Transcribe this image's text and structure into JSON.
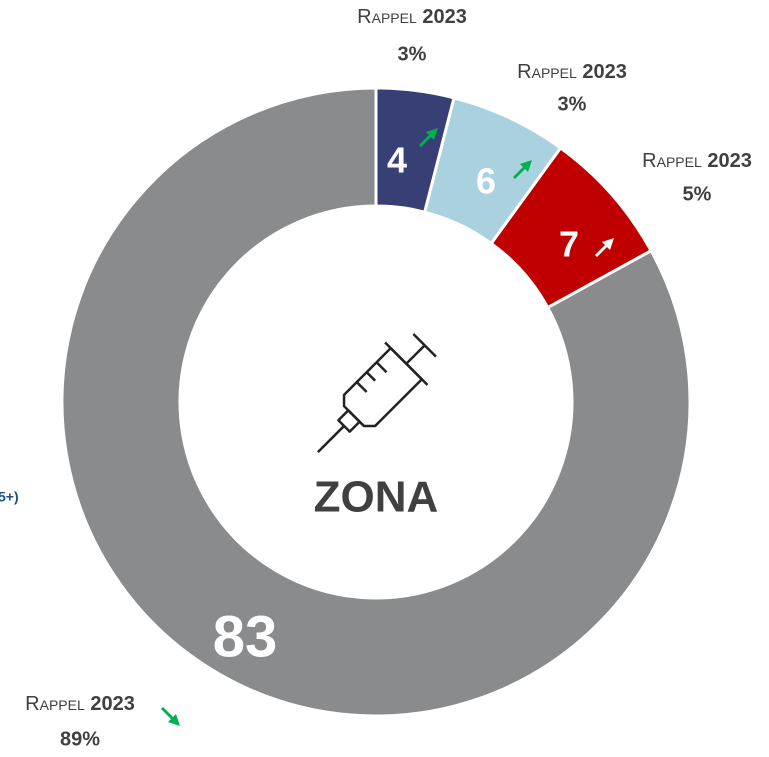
{
  "chart_data": {
    "type": "donut",
    "center_label": "ZONA",
    "side_note": "5+)",
    "values": [
      4,
      6,
      7,
      83
    ],
    "colors": [
      "#373f74",
      "#a9d1e0",
      "#c00000",
      "#898b8d"
    ],
    "label_colors": [
      "#ffffff",
      "#ffffff",
      "#ffffff",
      "#ffffff"
    ],
    "comparison": {
      "prefix": "Rappel",
      "year": "2023",
      "values": [
        3,
        3,
        5,
        89
      ],
      "value_labels": [
        "3%",
        "3%",
        "5%",
        "89%"
      ]
    },
    "trends": [
      "up",
      "up",
      "up",
      "down"
    ],
    "trend_colors": [
      "#00b050",
      "#00b050",
      "#ffffff",
      "#00b050"
    ]
  }
}
